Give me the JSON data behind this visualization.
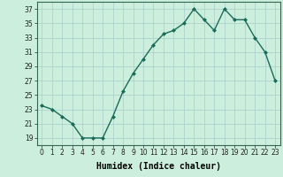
{
  "xlabel": "Humidex (Indice chaleur)",
  "x_values": [
    0,
    1,
    2,
    3,
    4,
    5,
    6,
    7,
    8,
    9,
    10,
    11,
    12,
    13,
    14,
    15,
    16,
    17,
    18,
    19,
    20,
    21,
    22,
    23
  ],
  "y_values": [
    23.5,
    23,
    22,
    21,
    19,
    19,
    19,
    22,
    25.5,
    28,
    30,
    32,
    33.5,
    34,
    35,
    37,
    35.5,
    34,
    37,
    35.5,
    35.5,
    33,
    31,
    27
  ],
  "line_color": "#1a6b5a",
  "marker": "D",
  "marker_size": 2.0,
  "bg_color": "#cceedd",
  "grid_color": "#aacccc",
  "ylim": [
    18,
    38
  ],
  "xlim": [
    -0.5,
    23.5
  ],
  "yticks": [
    19,
    21,
    23,
    25,
    27,
    29,
    31,
    33,
    35,
    37
  ],
  "xticks": [
    0,
    1,
    2,
    3,
    4,
    5,
    6,
    7,
    8,
    9,
    10,
    11,
    12,
    13,
    14,
    15,
    16,
    17,
    18,
    19,
    20,
    21,
    22,
    23
  ],
  "tick_fontsize": 5.5,
  "xlabel_fontsize": 7.0,
  "line_width": 1.0
}
